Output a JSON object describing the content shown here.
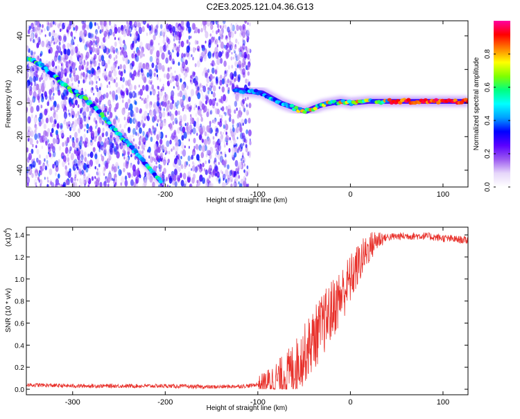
{
  "title": "C2E3.2025.121.04.36.G13",
  "colors": {
    "background": "#ffffff",
    "snr_line": "#e8302a",
    "spectro_low": "#8a2be2",
    "colormap": [
      "#ffffff",
      "#e6d6fa",
      "#9b59f0",
      "#5a00ff",
      "#0000ff",
      "#00a0ff",
      "#00ffff",
      "#00ff80",
      "#80ff00",
      "#ffff00",
      "#ff8000",
      "#ff0000",
      "#ff00a0"
    ]
  },
  "chart_data": [
    {
      "type": "heatmap",
      "xlabel": "Height of straight line (km)",
      "ylabel": "Frequency (Hz)",
      "xlim": [
        -350,
        127
      ],
      "ylim": [
        -50,
        49
      ],
      "xticks": [
        -300,
        -200,
        -100,
        0,
        100
      ],
      "yticks": [
        -40,
        -20,
        0,
        20,
        40
      ],
      "colorbar": {
        "label": "Normalized spectral amplitude",
        "range": [
          0,
          1
        ],
        "ticks": [
          0.0,
          0.2,
          0.4,
          0.6,
          0.8
        ]
      },
      "ridges": [
        {
          "x": [
            -350,
            -335,
            -320,
            -305,
            -290,
            -275,
            -255,
            -240,
            -225,
            -205
          ],
          "y": [
            27,
            23,
            16,
            9,
            4,
            -3,
            -16,
            -24,
            -34,
            -47
          ]
        },
        {
          "x": [
            -125,
            -110,
            -95,
            -85,
            -75,
            -65,
            -55,
            -48,
            -40,
            -30,
            -20,
            -10,
            0,
            20,
            50,
            80,
            100,
            127
          ],
          "y": [
            8,
            7,
            6,
            3,
            0,
            -2,
            -4,
            -5,
            -3,
            -1,
            0,
            1,
            0,
            1,
            1,
            1,
            1,
            1
          ]
        }
      ],
      "grid": false
    },
    {
      "type": "line",
      "xlabel": "Height of straight line (km)",
      "ylabel": "SNR (10 * v/v)",
      "yscale_label": "(x10",
      "yscale_exp": "4",
      "xlim": [
        -350,
        127
      ],
      "ylim": [
        -0.05,
        1.47
      ],
      "xticks": [
        -300,
        -200,
        -100,
        0,
        100
      ],
      "yticks": [
        0.0,
        0.2,
        0.4,
        0.6,
        0.8,
        1.0,
        1.2,
        1.4
      ],
      "series": [
        {
          "x": [
            -350,
            -300,
            -250,
            -200,
            -150,
            -110,
            -90,
            -70,
            -55,
            -40,
            -25,
            -10,
            0,
            10,
            20,
            30,
            40,
            60,
            80,
            100,
            127
          ],
          "y": [
            0.04,
            0.03,
            0.03,
            0.03,
            0.02,
            0.03,
            0.06,
            0.12,
            0.25,
            0.45,
            0.65,
            0.85,
            1.0,
            1.15,
            1.28,
            1.36,
            1.38,
            1.39,
            1.39,
            1.37,
            1.35
          ]
        }
      ],
      "grid": false
    }
  ]
}
